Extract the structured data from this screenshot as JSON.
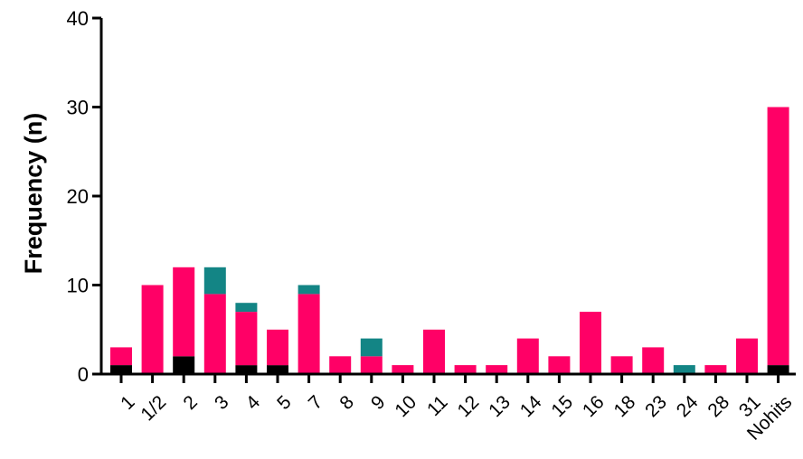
{
  "chart_data": {
    "type": "bar",
    "stacked": true,
    "title": "",
    "xlabel": "",
    "ylabel": "Frequency (n)",
    "ylim": [
      0,
      40
    ],
    "yticks": [
      0,
      10,
      20,
      30,
      40
    ],
    "grid": false,
    "categories": [
      "1",
      "1/2",
      "2",
      "3",
      "4",
      "5",
      "7",
      "8",
      "9",
      "10",
      "11",
      "12",
      "13",
      "14",
      "15",
      "16",
      "18",
      "23",
      "24",
      "28",
      "31",
      "Nohits"
    ],
    "series": [
      {
        "color": "#000000",
        "values": [
          1,
          0,
          2,
          0,
          1,
          1,
          0,
          0,
          0,
          0,
          0,
          0,
          0,
          0,
          0,
          0,
          0,
          0,
          0,
          0,
          0,
          1
        ]
      },
      {
        "color": "#FF0066",
        "values": [
          2,
          10,
          10,
          9,
          6,
          4,
          9,
          2,
          2,
          1,
          5,
          1,
          1,
          4,
          2,
          7,
          2,
          3,
          0,
          1,
          4,
          29
        ]
      },
      {
        "color": "#138585",
        "values": [
          0,
          0,
          0,
          3,
          1,
          0,
          1,
          0,
          2,
          0,
          0,
          0,
          0,
          0,
          0,
          0,
          0,
          0,
          1,
          0,
          0,
          0
        ]
      }
    ]
  }
}
